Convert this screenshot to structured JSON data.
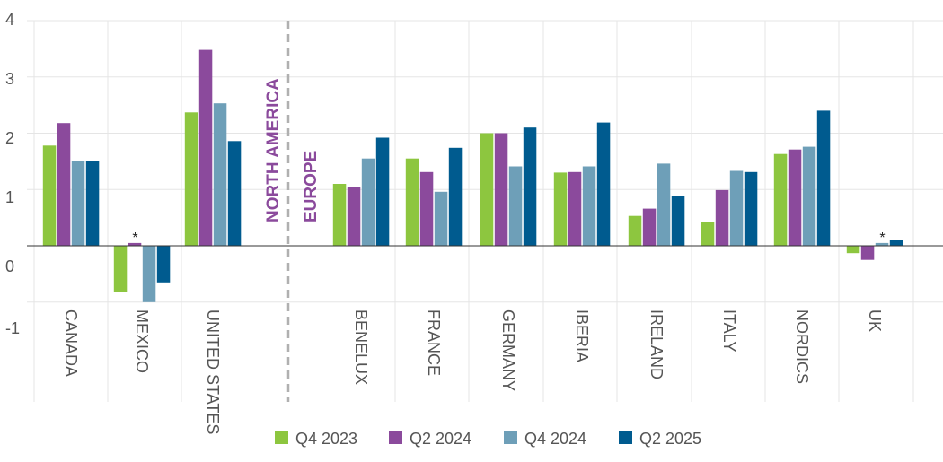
{
  "chart_data": {
    "type": "bar",
    "categories": [
      "CANADA",
      "MEXICO",
      "UNITED STATES",
      "BENELUX",
      "FRANCE",
      "GERMANY",
      "IBERIA",
      "IRELAND",
      "ITALY",
      "NORDICS",
      "UK"
    ],
    "regions": [
      {
        "label": "NORTH AMERICA",
        "categories": [
          "CANADA",
          "MEXICO",
          "UNITED STATES"
        ]
      },
      {
        "label": "EUROPE",
        "categories": [
          "BENELUX",
          "FRANCE",
          "GERMANY",
          "IBERIA",
          "IRELAND",
          "ITALY",
          "NORDICS",
          "UK"
        ]
      }
    ],
    "series": [
      {
        "name": "Q4 2023",
        "color": "#8dc63f",
        "values": [
          1.78,
          -0.82,
          2.37,
          1.1,
          1.55,
          2.0,
          1.3,
          0.53,
          0.43,
          1.63,
          -0.13
        ]
      },
      {
        "name": "Q2 2024",
        "color": "#8b4a9c",
        "values": [
          2.18,
          0.05,
          3.48,
          1.04,
          1.31,
          2.0,
          1.31,
          0.66,
          0.99,
          1.71,
          -0.25
        ]
      },
      {
        "name": "Q4 2024",
        "color": "#6e9fb8",
        "values": [
          1.5,
          -1.0,
          2.53,
          1.55,
          0.96,
          1.41,
          1.41,
          1.46,
          1.33,
          1.76,
          0.05
        ]
      },
      {
        "name": "Q2 2025",
        "color": "#005b8f",
        "values": [
          1.5,
          -0.65,
          1.86,
          1.92,
          1.74,
          2.1,
          2.19,
          0.88,
          1.31,
          2.4,
          0.1
        ]
      }
    ],
    "annotations": [
      {
        "category": "MEXICO",
        "text": "*"
      },
      {
        "category": "UK",
        "text": "*"
      }
    ],
    "y_ticks": [
      "4",
      "3",
      "2",
      "1",
      "0",
      "-1"
    ],
    "ylim": [
      -1,
      4
    ],
    "grid": true,
    "legend_position": "bottom",
    "title": "",
    "xlabel": "",
    "ylabel": ""
  }
}
